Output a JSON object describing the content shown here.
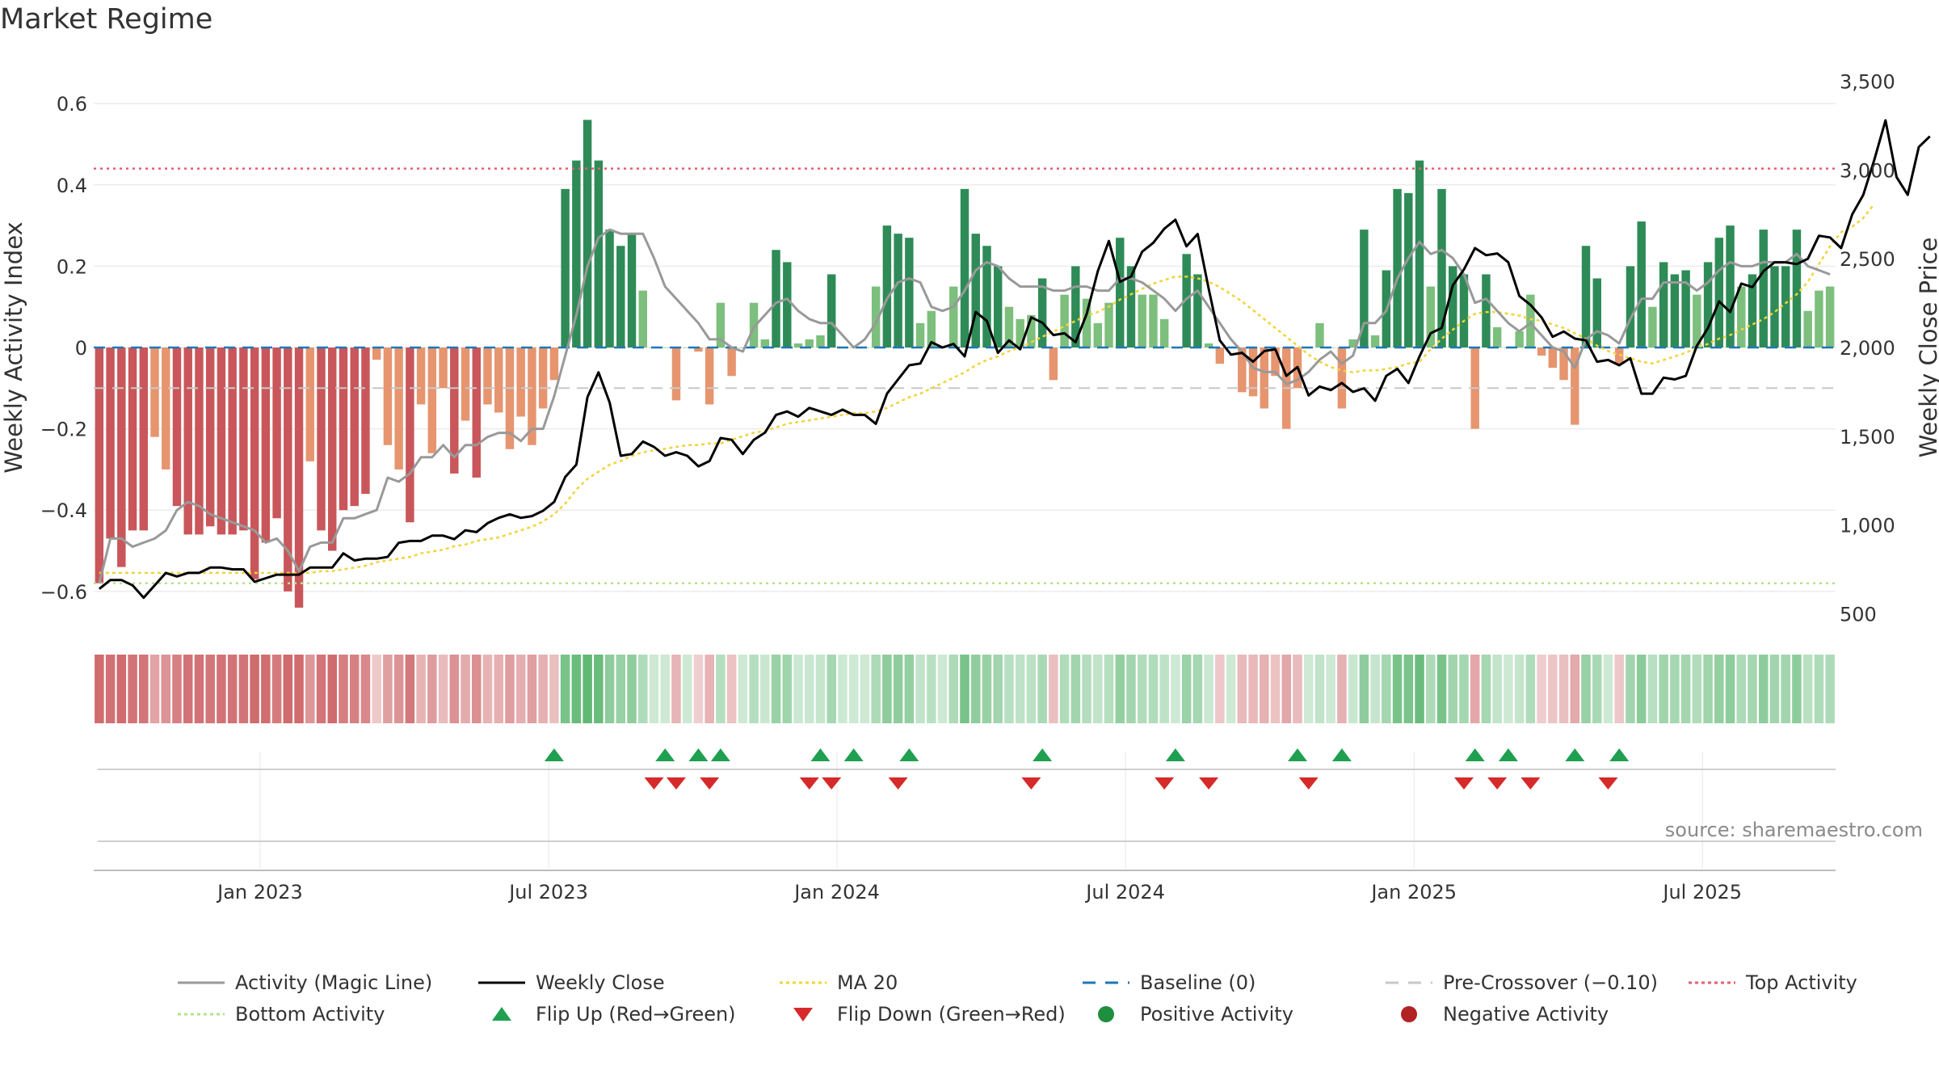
{
  "title": "Market Regime",
  "source": "source: sharemaestro.com",
  "colors": {
    "neg_strong": "#c9565a",
    "neg_light": "#e6956f",
    "pos_strong": "#2e8b57",
    "pos_light": "#7dbf7d",
    "magic": "#999999",
    "close": "#000000",
    "ma": "#f2d43a",
    "baseline": "#1f77b4",
    "precross": "#c8c8c8",
    "top": "#e06070",
    "bottom": "#b8e08a",
    "flip_up": "#1fa050",
    "flip_down": "#d62a2a"
  },
  "chart_data": {
    "type": "bar",
    "y_left_label": "Weekly Activity Index",
    "y_right_label": "Weekly Close Price",
    "y_left_ticks": [
      {
        "v": 0.6,
        "label": "0.6"
      },
      {
        "v": 0.4,
        "label": "0.4"
      },
      {
        "v": 0.2,
        "label": "0.2"
      },
      {
        "v": 0,
        "label": "0"
      },
      {
        "v": -0.2,
        "label": "−0.2"
      },
      {
        "v": -0.4,
        "label": "−0.4"
      },
      {
        "v": -0.6,
        "label": "−0.6"
      }
    ],
    "y_right_ticks": [
      {
        "v": 3500,
        "label": "3,500"
      },
      {
        "v": 3000,
        "label": "3,000"
      },
      {
        "v": 2500,
        "label": "2,500"
      },
      {
        "v": 2000,
        "label": "2,000"
      },
      {
        "v": 1500,
        "label": "1,500"
      },
      {
        "v": 1000,
        "label": "1,000"
      },
      {
        "v": 500,
        "label": "500"
      }
    ],
    "x_ticks": [
      {
        "week": 15,
        "label": "Jan 2023"
      },
      {
        "week": 41,
        "label": "Jul 2023"
      },
      {
        "week": 67,
        "label": "Jan 2024"
      },
      {
        "week": 93,
        "label": "Jul 2024"
      },
      {
        "week": 119,
        "label": "Jan 2025"
      },
      {
        "week": 145,
        "label": "Jul 2025"
      }
    ],
    "top_activity": 0.44,
    "bottom_activity": -0.58,
    "pre_crossover": -0.1,
    "activity": [
      -0.58,
      -0.47,
      -0.54,
      -0.45,
      -0.45,
      -0.22,
      -0.3,
      -0.39,
      -0.46,
      -0.46,
      -0.44,
      -0.46,
      -0.46,
      -0.45,
      -0.57,
      -0.48,
      -0.42,
      -0.6,
      -0.64,
      -0.28,
      -0.45,
      -0.5,
      -0.4,
      -0.39,
      -0.36,
      -0.03,
      -0.24,
      -0.3,
      -0.43,
      -0.14,
      -0.26,
      -0.1,
      -0.31,
      -0.18,
      -0.32,
      -0.14,
      -0.16,
      -0.25,
      -0.17,
      -0.24,
      -0.15,
      -0.08,
      0.39,
      0.46,
      0.56,
      0.46,
      0.29,
      0.25,
      0.28,
      0.14,
      0,
      0,
      -0.13,
      0,
      -0.01,
      -0.14,
      0.11,
      -0.07,
      0,
      0.11,
      0.02,
      0.24,
      0.21,
      0.01,
      0.02,
      0.03,
      0.18,
      0,
      0,
      0,
      0.15,
      0.3,
      0.28,
      0.27,
      0.06,
      0.09,
      0,
      0.15,
      0.39,
      0.28,
      0.25,
      0.2,
      0.1,
      0.07,
      0.08,
      0.17,
      -0.08,
      0.13,
      0.2,
      0.12,
      0.06,
      0.11,
      0.27,
      0.2,
      0.13,
      0.13,
      0.07,
      0,
      0.23,
      0.18,
      0.01,
      -0.04,
      0,
      -0.11,
      -0.12,
      -0.15,
      -0.07,
      -0.2,
      -0.1,
      0,
      0.06,
      0,
      -0.15,
      0.02,
      0.29,
      0.03,
      0.19,
      0.39,
      0.38,
      0.46,
      0.15,
      0.39,
      0.2,
      0.18,
      -0.2,
      0.18,
      0.05,
      0,
      0.04,
      0.13,
      -0.02,
      -0.05,
      -0.08,
      -0.19,
      0.25,
      0.17,
      0,
      -0.04,
      0.2,
      0.31,
      0.1,
      0.21,
      0.18,
      0.19,
      0.13,
      0.21,
      0.27,
      0.3,
      0.15,
      0.18,
      0.29,
      0.2,
      0.2,
      0.29,
      0.09,
      0.14,
      0.15
    ],
    "magic_line": [
      -0.58,
      -0.47,
      -0.47,
      -0.49,
      -0.48,
      -0.47,
      -0.45,
      -0.4,
      -0.38,
      -0.39,
      -0.41,
      -0.42,
      -0.43,
      -0.44,
      -0.45,
      -0.48,
      -0.47,
      -0.5,
      -0.55,
      -0.49,
      -0.48,
      -0.48,
      -0.42,
      -0.42,
      -0.41,
      -0.4,
      -0.32,
      -0.33,
      -0.31,
      -0.27,
      -0.27,
      -0.24,
      -0.27,
      -0.24,
      -0.24,
      -0.22,
      -0.21,
      -0.21,
      -0.23,
      -0.2,
      -0.2,
      -0.12,
      -0.02,
      0.08,
      0.2,
      0.27,
      0.29,
      0.28,
      0.28,
      0.28,
      0.22,
      0.15,
      0.12,
      0.09,
      0.06,
      0.02,
      0.02,
      0,
      -0.01,
      0.05,
      0.08,
      0.11,
      0.12,
      0.09,
      0.07,
      0.06,
      0.06,
      0.03,
      0,
      0.02,
      0.06,
      0.12,
      0.16,
      0.17,
      0.16,
      0.1,
      0.09,
      0.1,
      0.14,
      0.19,
      0.21,
      0.2,
      0.17,
      0.15,
      0.15,
      0.15,
      0.14,
      0.14,
      0.15,
      0.15,
      0.14,
      0.14,
      0.17,
      0.17,
      0.16,
      0.14,
      0.12,
      0.09,
      0.12,
      0.14,
      0.1,
      0.06,
      0.02,
      -0.01,
      -0.05,
      -0.06,
      -0.06,
      -0.09,
      -0.08,
      -0.06,
      -0.03,
      -0.01,
      -0.04,
      -0.02,
      0.06,
      0.06,
      0.09,
      0.17,
      0.22,
      0.26,
      0.23,
      0.24,
      0.22,
      0.18,
      0.11,
      0.12,
      0.09,
      0.06,
      0.04,
      0.06,
      0.03,
      0,
      -0.01,
      -0.05,
      0.02,
      0.04,
      0.03,
      0.01,
      0.07,
      0.12,
      0.12,
      0.16,
      0.16,
      0.16,
      0.14,
      0.16,
      0.19,
      0.21,
      0.2,
      0.2,
      0.21,
      0.21,
      0.21,
      0.23,
      0.2,
      0.19,
      0.18
    ],
    "weekly_close": [
      640,
      690,
      690,
      660,
      590,
      660,
      730,
      710,
      730,
      730,
      760,
      760,
      750,
      750,
      680,
      700,
      720,
      720,
      720,
      760,
      760,
      760,
      840,
      800,
      810,
      810,
      820,
      900,
      910,
      910,
      940,
      940,
      920,
      970,
      960,
      1010,
      1040,
      1060,
      1040,
      1050,
      1080,
      1130,
      1270,
      1340,
      1720,
      1860,
      1690,
      1390,
      1400,
      1470,
      1440,
      1390,
      1410,
      1390,
      1330,
      1360,
      1490,
      1480,
      1400,
      1480,
      1520,
      1620,
      1640,
      1610,
      1660,
      1640,
      1620,
      1650,
      1620,
      1620,
      1570,
      1740,
      1820,
      1900,
      1910,
      2030,
      2000,
      2020,
      1950,
      2200,
      2150,
      1970,
      2040,
      1990,
      2170,
      2140,
      2070,
      2080,
      2030,
      2190,
      2430,
      2600,
      2370,
      2400,
      2540,
      2590,
      2670,
      2720,
      2570,
      2640,
      2330,
      2040,
      1960,
      1970,
      1920,
      1980,
      1990,
      1840,
      1890,
      1730,
      1780,
      1760,
      1800,
      1750,
      1770,
      1700,
      1840,
      1880,
      1800,
      1950,
      2080,
      2110,
      2350,
      2440,
      2560,
      2520,
      2530,
      2480,
      2290,
      2240,
      2170,
      2060,
      2090,
      2050,
      2040,
      1920,
      1930,
      1900,
      1940,
      1740,
      1740,
      1830,
      1820,
      1840,
      2010,
      2110,
      2260,
      2200,
      2360,
      2340,
      2430,
      2480,
      2480,
      2470,
      2500,
      2630,
      2620,
      2560,
      2750,
      2860,
      3060,
      3280,
      2960,
      2860,
      3130,
      3190
    ],
    "ma20": [
      730,
      730,
      730,
      730,
      730,
      730,
      730,
      730,
      730,
      730,
      730,
      730,
      730,
      730,
      730,
      730,
      730,
      730,
      730,
      730,
      740,
      740,
      750,
      760,
      770,
      790,
      800,
      810,
      820,
      840,
      850,
      860,
      880,
      890,
      910,
      920,
      930,
      950,
      970,
      990,
      1020,
      1060,
      1120,
      1200,
      1260,
      1300,
      1340,
      1360,
      1390,
      1410,
      1420,
      1430,
      1440,
      1450,
      1450,
      1460,
      1460,
      1480,
      1500,
      1520,
      1530,
      1550,
      1570,
      1580,
      1590,
      1600,
      1610,
      1620,
      1630,
      1630,
      1640,
      1660,
      1690,
      1720,
      1740,
      1770,
      1800,
      1830,
      1860,
      1900,
      1930,
      1950,
      1980,
      2000,
      2030,
      2060,
      2090,
      2120,
      2150,
      2180,
      2200,
      2230,
      2270,
      2300,
      2330,
      2360,
      2380,
      2400,
      2400,
      2390,
      2370,
      2340,
      2300,
      2260,
      2210,
      2160,
      2110,
      2060,
      2010,
      1960,
      1920,
      1890,
      1870,
      1860,
      1870,
      1870,
      1880,
      1890,
      1910,
      1920,
      1990,
      2050,
      2100,
      2150,
      2190,
      2200,
      2200,
      2190,
      2180,
      2160,
      2150,
      2130,
      2110,
      2080,
      2050,
      2010,
      1980,
      1960,
      1940,
      1920,
      1910,
      1930,
      1950,
      1970,
      2000,
      2020,
      2050,
      2070,
      2100,
      2130,
      2160,
      2200,
      2250,
      2300,
      2370,
      2470,
      2570,
      2650,
      2680,
      2730,
      2810
    ]
  },
  "flip_up_weeks": [
    41,
    51,
    54,
    56,
    65,
    68,
    73,
    85,
    97,
    108,
    112,
    124,
    127,
    133,
    137
  ],
  "flip_down_weeks": [
    50,
    52,
    55,
    64,
    66,
    72,
    84,
    96,
    100,
    109,
    123,
    126,
    129,
    136
  ],
  "legend": [
    {
      "key": "magic",
      "label": "Activity (Magic Line)",
      "style": "solid-gray"
    },
    {
      "key": "close",
      "label": "Weekly Close",
      "style": "solid-black"
    },
    {
      "key": "ma",
      "label": "MA 20",
      "style": "dotted-yellow"
    },
    {
      "key": "baseline",
      "label": "Baseline (0)",
      "style": "dash-blue"
    },
    {
      "key": "precross",
      "label": "Pre-Crossover (−0.10)",
      "style": "dash-gray"
    },
    {
      "key": "top",
      "label": "Top Activity",
      "style": "dotted-red"
    },
    {
      "key": "bottom",
      "label": "Bottom Activity",
      "style": "dotted-green"
    },
    {
      "key": "flip_up",
      "label": "Flip Up (Red→Green)",
      "style": "tri-up"
    },
    {
      "key": "flip_down",
      "label": "Flip Down (Green→Red)",
      "style": "tri-down"
    },
    {
      "key": "pos",
      "label": "Positive Activity",
      "style": "dot-green"
    },
    {
      "key": "neg",
      "label": "Negative Activity",
      "style": "dot-red"
    }
  ]
}
